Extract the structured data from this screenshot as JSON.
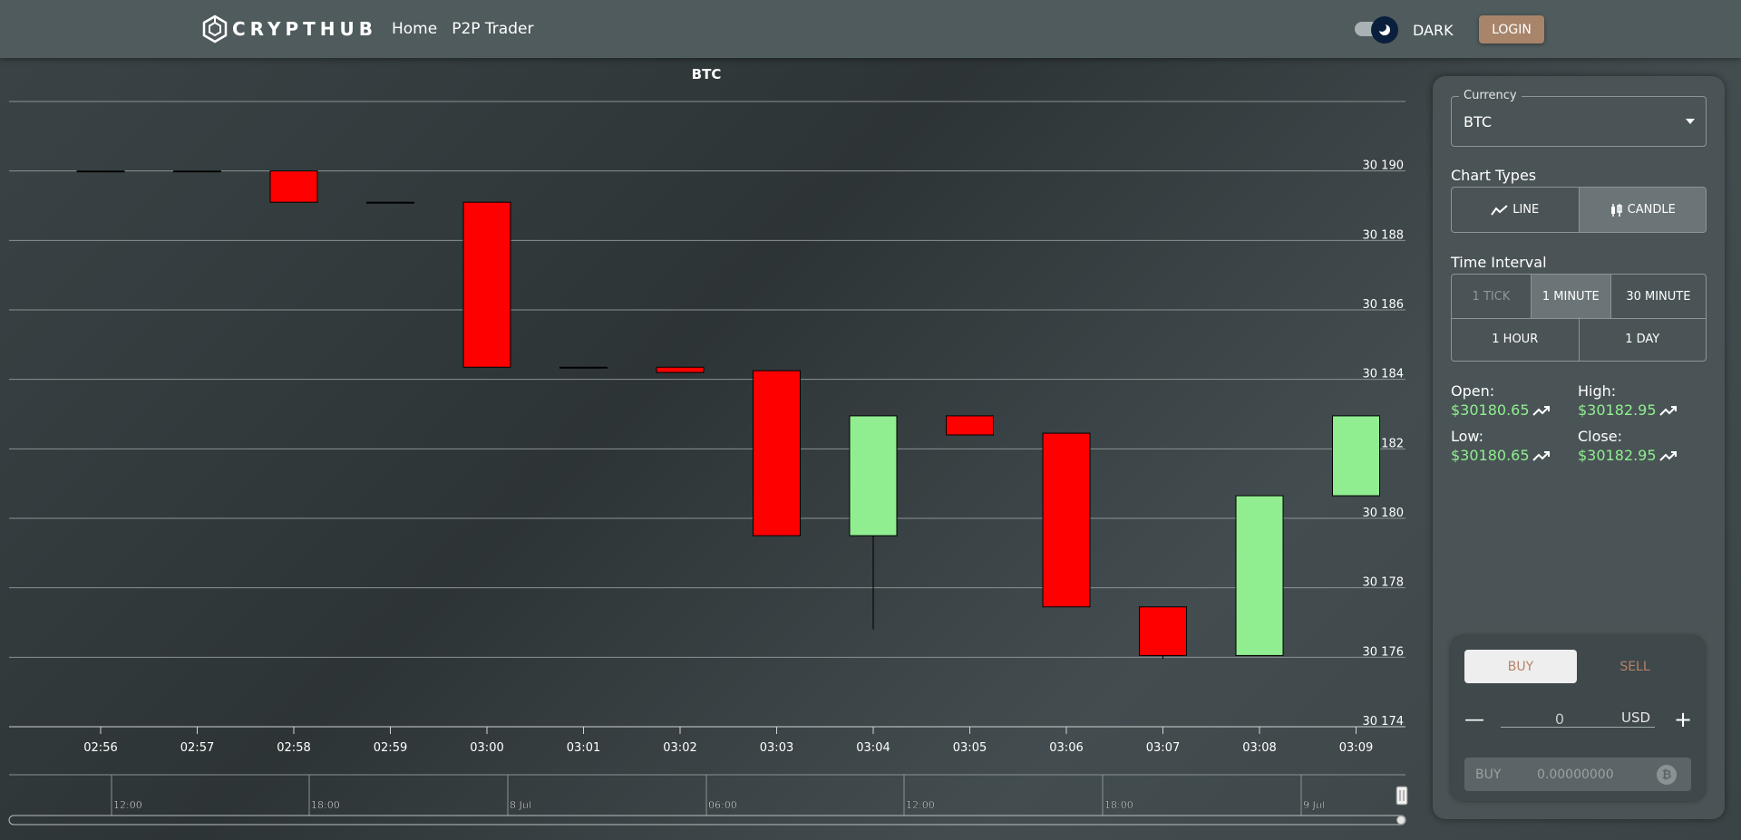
{
  "header": {
    "brand": "CRYPTHUB",
    "nav": [
      "Home",
      "P2P Trader"
    ],
    "theme_label": "DARK",
    "login_label": "LOGIN"
  },
  "chart_data": {
    "type": "candlestick",
    "title": "BTC",
    "ylim": [
      30174,
      30192
    ],
    "yticks": [
      30174,
      30176,
      30178,
      30180,
      30182,
      30184,
      30186,
      30188,
      30190
    ],
    "ytick_labels": [
      "30 174",
      "30 176",
      "30 178",
      "30 180",
      "30 182",
      "30 184",
      "30 186",
      "30 188",
      "30 190"
    ],
    "categories": [
      "02:56",
      "02:57",
      "02:58",
      "02:59",
      "03:00",
      "03:01",
      "03:02",
      "03:03",
      "03:04",
      "03:05",
      "03:06",
      "03:07",
      "03:08",
      "03:09"
    ],
    "candles": [
      {
        "t": "02:56",
        "o": 30190.0,
        "h": 30190.0,
        "l": 30190.0,
        "c": 30190.0
      },
      {
        "t": "02:57",
        "o": 30190.0,
        "h": 30190.0,
        "l": 30190.0,
        "c": 30190.0
      },
      {
        "t": "02:58",
        "o": 30190.0,
        "h": 30190.0,
        "l": 30189.1,
        "c": 30189.1
      },
      {
        "t": "02:59",
        "o": 30189.1,
        "h": 30189.1,
        "l": 30189.1,
        "c": 30189.1
      },
      {
        "t": "03:00",
        "o": 30189.1,
        "h": 30189.1,
        "l": 30184.35,
        "c": 30184.35
      },
      {
        "t": "03:01",
        "o": 30184.35,
        "h": 30184.35,
        "l": 30184.35,
        "c": 30184.35
      },
      {
        "t": "03:02",
        "o": 30184.35,
        "h": 30184.35,
        "l": 30184.2,
        "c": 30184.2
      },
      {
        "t": "03:03",
        "o": 30184.25,
        "h": 30184.25,
        "l": 30179.5,
        "c": 30179.5
      },
      {
        "t": "03:04",
        "o": 30179.5,
        "h": 30182.95,
        "l": 30176.8,
        "c": 30182.95
      },
      {
        "t": "03:05",
        "o": 30182.95,
        "h": 30182.95,
        "l": 30182.4,
        "c": 30182.4
      },
      {
        "t": "03:06",
        "o": 30182.45,
        "h": 30182.45,
        "l": 30177.45,
        "c": 30177.45
      },
      {
        "t": "03:07",
        "o": 30177.45,
        "h": 30177.45,
        "l": 30175.95,
        "c": 30176.05
      },
      {
        "t": "03:08",
        "o": 30176.05,
        "h": 30180.65,
        "l": 30176.05,
        "c": 30180.65
      },
      {
        "t": "03:09",
        "o": 30180.65,
        "h": 30182.95,
        "l": 30180.65,
        "c": 30182.95
      }
    ],
    "navigator_labels": [
      "12:00",
      "18:00",
      "8 Jul",
      "06:00",
      "12:00",
      "18:00",
      "9 Jul"
    ],
    "colors": {
      "up": "#90ee90",
      "down": "#ff0000",
      "grid": "#8a9294"
    }
  },
  "panel": {
    "currency_label": "Currency",
    "currency_value": "BTC",
    "chart_types_title": "Chart Types",
    "chart_types": [
      {
        "label": "LINE",
        "active": false
      },
      {
        "label": "CANDLE",
        "active": true
      }
    ],
    "interval_title": "Time Interval",
    "intervals_row1": [
      {
        "label": "1 TICK",
        "state": "disabled"
      },
      {
        "label": "1 MINUTE",
        "state": "active"
      },
      {
        "label": "30 MINUTE",
        "state": "normal"
      }
    ],
    "intervals_row2": [
      {
        "label": "1 HOUR",
        "state": "normal"
      },
      {
        "label": "1 DAY",
        "state": "normal"
      }
    ],
    "stats": {
      "open_label": "Open:",
      "open_value": "$30180.65",
      "high_label": "High:",
      "high_value": "$30182.95",
      "low_label": "Low:",
      "low_value": "$30180.65",
      "close_label": "Close:",
      "close_value": "$30182.95"
    },
    "trade": {
      "buy_tab": "BUY",
      "sell_tab": "SELL",
      "quantity": "0",
      "unit": "USD",
      "buy_label": "BUY",
      "buy_amount": "0.00000000",
      "coin_icon": "bitcoin-icon"
    }
  }
}
